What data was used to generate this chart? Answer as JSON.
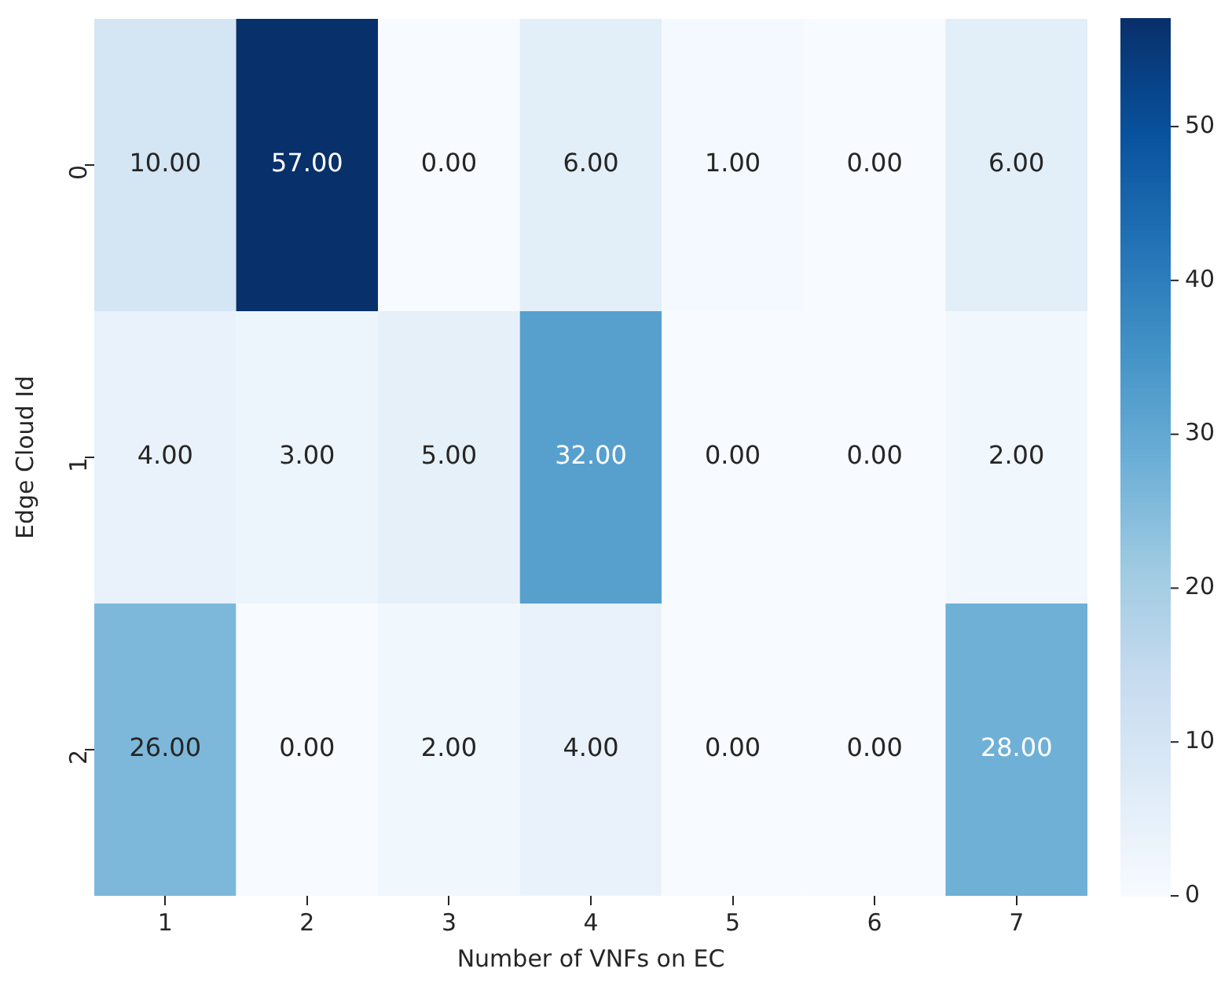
{
  "chart_data": {
    "type": "heatmap",
    "xlabel": "Number of VNFs on EC",
    "ylabel": "Edge Cloud Id",
    "categories": [
      "1",
      "2",
      "3",
      "4",
      "5",
      "6",
      "7"
    ],
    "y_categories": [
      "0",
      "1",
      "2"
    ],
    "cells": [
      [
        10,
        57,
        0,
        6,
        1,
        0,
        6
      ],
      [
        4,
        3,
        5,
        32,
        0,
        0,
        2
      ],
      [
        26,
        0,
        2,
        4,
        0,
        0,
        28
      ]
    ],
    "cell_labels": [
      [
        "10.00",
        "57.00",
        "0.00",
        "6.00",
        "1.00",
        "0.00",
        "6.00"
      ],
      [
        "4.00",
        "3.00",
        "5.00",
        "32.00",
        "0.00",
        "0.00",
        "2.00"
      ],
      [
        "26.00",
        "0.00",
        "2.00",
        "4.00",
        "0.00",
        "0.00",
        "28.00"
      ]
    ],
    "clim": [
      0,
      57
    ],
    "cticks": [
      0,
      10,
      20,
      30,
      40,
      50
    ]
  }
}
